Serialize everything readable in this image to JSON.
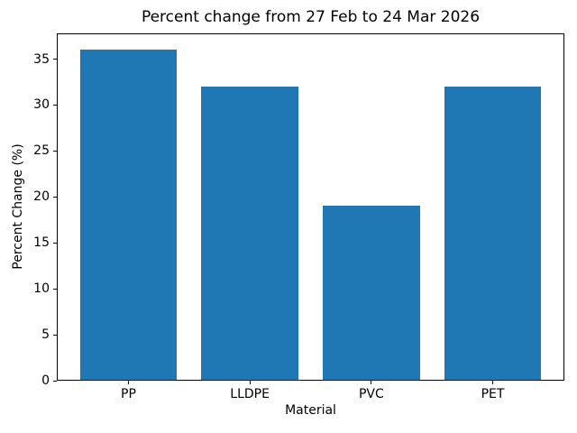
{
  "chart_data": {
    "type": "bar",
    "title": "Percent change from 27 Feb to 24 Mar 2026",
    "xlabel": "Material",
    "ylabel": "Percent Change (%)",
    "categories": [
      "PP",
      "LLDPE",
      "PVC",
      "PET"
    ],
    "values": [
      36,
      32,
      19,
      32
    ],
    "yticks": [
      0,
      5,
      10,
      15,
      20,
      25,
      30,
      35
    ],
    "ylim": [
      0,
      37.8
    ],
    "bar_color": "#1f77b4",
    "axis_color": "#000000",
    "background_color": "#ffffff",
    "grid": false,
    "legend": false
  }
}
